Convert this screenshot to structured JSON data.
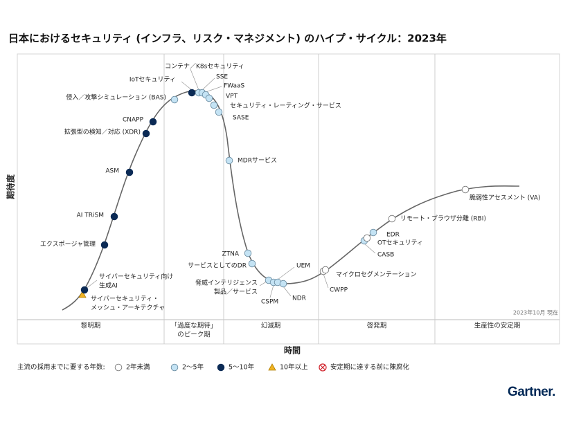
{
  "title": "日本におけるセキュリティ (インフラ、リスク・マネジメント) のハイプ・サイクル：2023年",
  "y_axis_label": "期待度",
  "x_axis_label": "時間",
  "date_note": "2023年10月 現在",
  "phases": [
    [
      "黎明期"
    ],
    [
      "「過度な期待」",
      "のピーク期"
    ],
    [
      "幻滅期"
    ],
    [
      "啓発期"
    ],
    [
      "生産性の安定期"
    ]
  ],
  "legend": {
    "title": "主流の採用までに要する年数:",
    "items": [
      "2年未満",
      "2～5年",
      "5～10年",
      "10年以上",
      "安定期に達する前に陳腐化"
    ]
  },
  "nodes": [
    {
      "label": [
        "サイバーセキュリティ・",
        "メッシュ・アーキテクチャ"
      ],
      "legend_item": 3
    },
    {
      "label": [
        "サイバーセキュリティ向け",
        "生成AI"
      ],
      "legend_item": 2
    },
    {
      "label": [
        "エクスポージャ管理"
      ],
      "legend_item": 2
    },
    {
      "label": [
        "AI TRiSM"
      ],
      "legend_item": 2
    },
    {
      "label": [
        "ASM"
      ],
      "legend_item": 2
    },
    {
      "label": [
        "拡張型の検知／対応 (XDR)"
      ],
      "legend_item": 2
    },
    {
      "label": [
        "CNAPP"
      ],
      "legend_item": 2
    },
    {
      "label": [
        "侵入／攻撃シミュレーション (BAS)"
      ],
      "legend_item": 1
    },
    {
      "label": [
        "IoTセキュリティ"
      ],
      "legend_item": 2
    },
    {
      "label": [
        "コンテナ／K8sセキュリティ"
      ],
      "legend_item": 1
    },
    {
      "label": [
        "SSE"
      ],
      "legend_item": 1
    },
    {
      "label": [
        "FWaaS"
      ],
      "legend_item": 1
    },
    {
      "label": [
        "VPT"
      ],
      "legend_item": 1
    },
    {
      "label": [
        "セキュリティ・レーティング・サービス"
      ],
      "legend_item": 1
    },
    {
      "label": [
        "SASE"
      ],
      "legend_item": 1
    },
    {
      "label": [
        "MDRサービス"
      ],
      "legend_item": 1
    },
    {
      "label": [
        "ZTNA"
      ],
      "legend_item": 1
    },
    {
      "label": [
        "サービスとしてのDR"
      ],
      "legend_item": 1
    },
    {
      "label": [
        "脅威インテリジェンス",
        "製品／サービス"
      ],
      "legend_item": 1
    },
    {
      "label": [
        "CSPM"
      ],
      "legend_item": 1
    },
    {
      "label": [
        "UEM"
      ],
      "legend_item": 1
    },
    {
      "label": [
        "NDR"
      ],
      "legend_item": 1
    },
    {
      "label": [
        "CWPP"
      ],
      "legend_item": 0
    },
    {
      "label": [
        "マイクロセグメンテーション"
      ],
      "legend_item": 0
    },
    {
      "label": [
        "CASB"
      ],
      "legend_item": 1
    },
    {
      "label": [
        "OTセキュリティ"
      ],
      "legend_item": 0
    },
    {
      "label": [
        "EDR"
      ],
      "legend_item": 1
    },
    {
      "label": [
        "リモート・ブラウザ分離 (RBI)"
      ],
      "legend_item": 0
    },
    {
      "label": [
        "脆弱性アセスメント (VA)"
      ],
      "legend_item": 0
    }
  ],
  "logo": "Gartner."
}
